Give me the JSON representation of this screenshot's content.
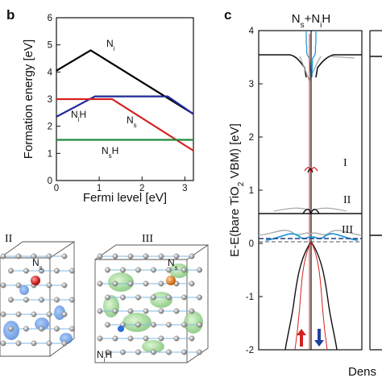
{
  "panels": {
    "b": "b",
    "c": "c"
  },
  "figure_b": {
    "ylabel": "Formation energy [eV]",
    "xlabel": "Fermi level [eV]",
    "labels": {
      "ni": "N",
      "ni_sub": "i",
      "nih": "N",
      "nih_sub": "i",
      "nih_tail": "H",
      "ns": "N",
      "ns_sub": "s",
      "nsh": "N",
      "nsh_sub": "s",
      "nsh_tail": "H"
    },
    "colors": {
      "ni": "#000000",
      "nih": "#1f2a9a",
      "ns": "#d62121",
      "nsh": "#1f8a3a"
    }
  },
  "figure_c": {
    "title_a": "N",
    "title_a_sub": "s",
    "title_b": "+N",
    "title_b_sub": "i",
    "title_c": "H",
    "ylabel_pre": "E-E(bare TiO",
    "ylabel_sub": "2",
    "ylabel_post": " VBM) [eV]",
    "xlabel": "Dens",
    "levels": [
      "I",
      "II",
      "III"
    ]
  },
  "structures": {
    "ii": "II",
    "iii": "III",
    "ns_a": "N",
    "ns_a_sub": "s",
    "ns_b": "N",
    "ns_b_sub": "s",
    "nih": "N",
    "nih_sub": "i",
    "nih_tail": "H"
  },
  "chart_data": [
    {
      "type": "line",
      "xlabel": "Fermi level [eV]",
      "ylabel": "Formation energy [eV]",
      "xlim": [
        0,
        3.2
      ],
      "ylim": [
        0,
        6
      ],
      "xticks": [
        0,
        1,
        2,
        3
      ],
      "yticks": [
        0,
        1,
        2,
        3,
        4,
        5,
        6
      ],
      "grid": false,
      "series": [
        {
          "name": "Ni",
          "color": "#000000",
          "x": [
            0,
            0.8,
            3.2
          ],
          "y": [
            4.05,
            4.8,
            2.45
          ]
        },
        {
          "name": "NiH",
          "color": "#1f2a9a",
          "x": [
            0,
            0.9,
            2.6,
            3.2
          ],
          "y": [
            2.35,
            3.1,
            3.1,
            2.45
          ]
        },
        {
          "name": "Ns",
          "color": "#d62121",
          "x": [
            0,
            1.3,
            3.2
          ],
          "y": [
            3.0,
            3.0,
            1.1
          ]
        },
        {
          "name": "NsH",
          "color": "#1f8a3a",
          "x": [
            0,
            3.2
          ],
          "y": [
            1.5,
            1.5
          ]
        }
      ]
    },
    {
      "type": "line",
      "ylabel": "E-E(bare TiO2 VBM) [eV]",
      "ylim": [
        -2,
        4
      ],
      "yticks": [
        -2,
        -1,
        0,
        1,
        2,
        3,
        4
      ],
      "grid": false,
      "levels_ev": {
        "I": 1.3,
        "II": 0.55,
        "III": 0.1
      }
    }
  ]
}
